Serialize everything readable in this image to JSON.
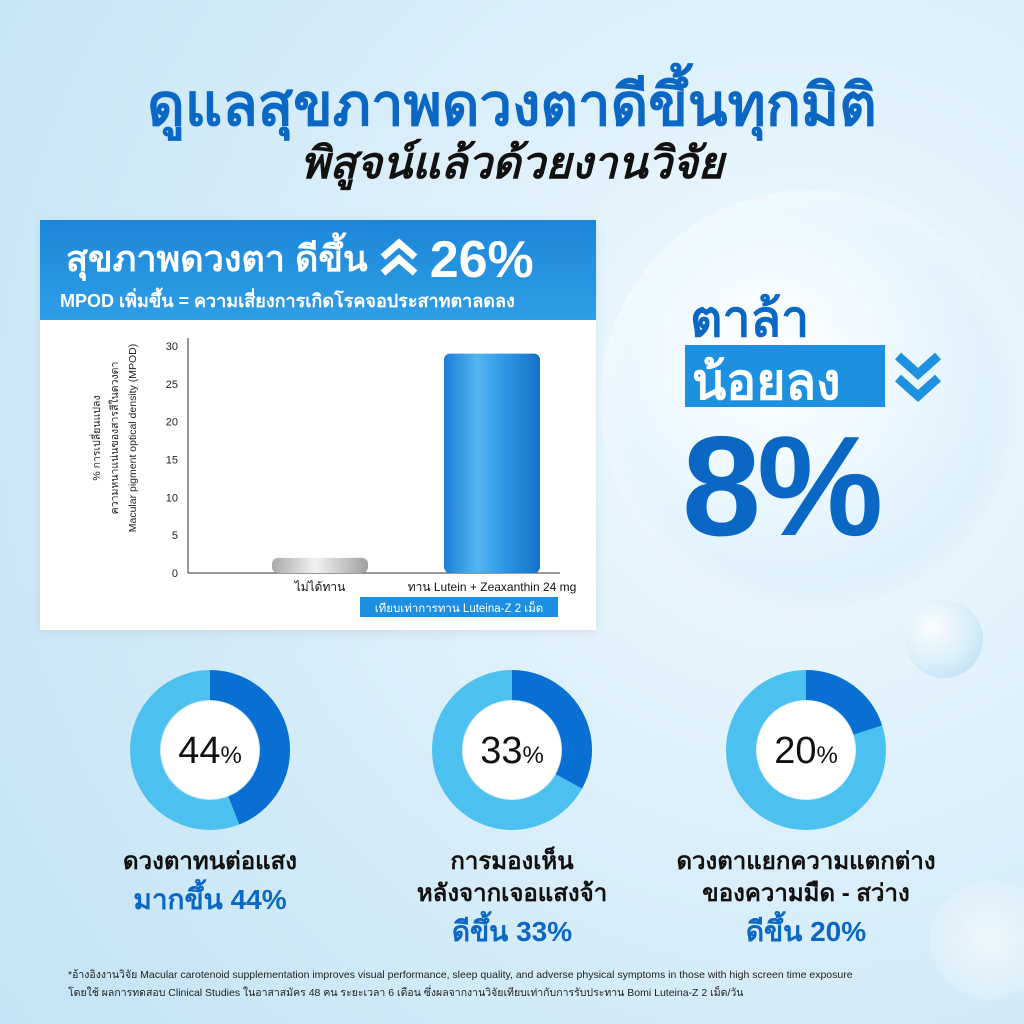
{
  "header": {
    "title": "ดูแลสุขภาพดวงตาดีขึ้นทุกมิติ",
    "subtitle": "พิสูจน์แล้วด้วยงานวิจัย"
  },
  "study_card": {
    "headline_prefix": "สุขภาพดวงตา",
    "headline_emphasis": "ดีขึ้น",
    "headline_value": "26%",
    "subline": "MPOD เพิ่มขึ้น = ความเสี่ยงการเกิดโรคจอประสาทตาลดลง",
    "badge": "เทียบเท่าการทาน Luteina-Z 2 เม็ด"
  },
  "eye_strain": {
    "line1": "ตาล้า",
    "line2": "น้อยลง",
    "value": "8%"
  },
  "donuts": [
    {
      "percent": 44,
      "number": "44",
      "unit": "%",
      "label_lines": [
        "ดวงตาทนต่อแสง"
      ],
      "highlight": "มากขึ้น 44%"
    },
    {
      "percent": 33,
      "number": "33",
      "unit": "%",
      "label_lines": [
        "การมองเห็น",
        "หลังจากเจอแสงจ้า"
      ],
      "highlight": "ดีขึ้น 33%"
    },
    {
      "percent": 20,
      "number": "20",
      "unit": "%",
      "label_lines": [
        "ดวงตาแยกความแตกต่าง",
        "ของความมืด - สว่าง"
      ],
      "highlight": "ดีขึ้น 20%"
    }
  ],
  "footnote": {
    "line1": "*อ้างอิงงานวิจัย Macular carotenoid supplementation improves visual performance, sleep quality, and adverse physical symptoms in those with high screen time exposure",
    "line2": "โดยใช้ ผลการทดสอบ Clinical Studies ในอาสาสมัคร 48 คน ระยะเวลา 6 เดือน ซึ่งผลจากงานวิจัยเทียบเท่ากับการรับประทาน Bomi Luteina-Z 2 เม็ด/วัน"
  },
  "colors": {
    "brand_blue": "#0a68c4",
    "bar_blue": "#1e90e0",
    "bar_gray": "#c8c8c8",
    "donut_dark": "#0a6fd2",
    "donut_light": "#4cc0ef"
  },
  "chart_data": {
    "type": "bar",
    "categories": [
      "ไม่ได้ทาน",
      "ทาน Lutein + Zeaxanthin 24 mg"
    ],
    "values": [
      2,
      29
    ],
    "ylabel_lines": [
      "% การเปลี่ยนแปลง",
      "ความหนาแน่นของสารสีในดวงตา",
      "Macular pigment optical density (MPOD)"
    ],
    "yticks": [
      0,
      5,
      10,
      15,
      20,
      25,
      30
    ],
    "ylim": [
      0,
      30
    ],
    "grid": false
  }
}
